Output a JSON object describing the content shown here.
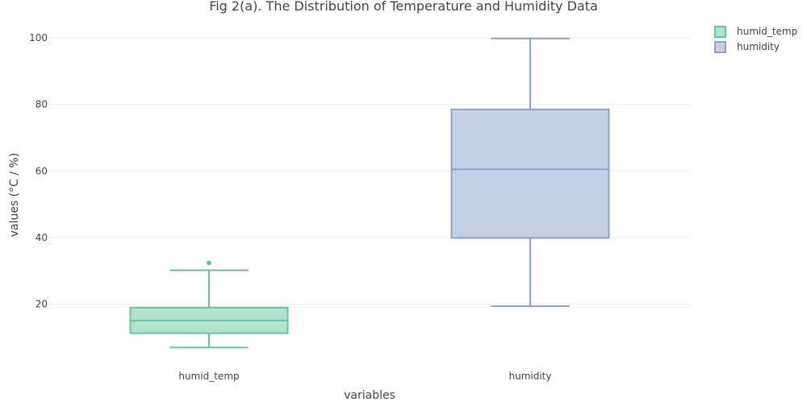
{
  "chart_data": {
    "type": "box",
    "title": "Fig 2(a). The Distribution of Temperature and Humidity Data",
    "xlabel": "variables",
    "ylabel": "values (°C / %)",
    "categories": [
      "humid_temp",
      "humidity"
    ],
    "ylim": [
      2.5,
      106.5
    ],
    "yticks": [
      20,
      40,
      60,
      80,
      100
    ],
    "grid": true,
    "legend_position": "top-right",
    "series": [
      {
        "name": "humid_temp",
        "category": "humid_temp",
        "color": "#66c2a5",
        "fill": "#b3e2cd",
        "whisker_low": 7,
        "q1": 11.3,
        "median": 15.1,
        "q3": 19,
        "whisker_high": 30.2,
        "outliers": [
          32.4
        ]
      },
      {
        "name": "humidity",
        "category": "humidity",
        "color": "#8da0cb",
        "fill": "#c5cfe4",
        "whisker_low": 19.4,
        "q1": 39.9,
        "median": 60.5,
        "q3": 78.5,
        "whisker_high": 99.8,
        "outliers": []
      }
    ]
  }
}
